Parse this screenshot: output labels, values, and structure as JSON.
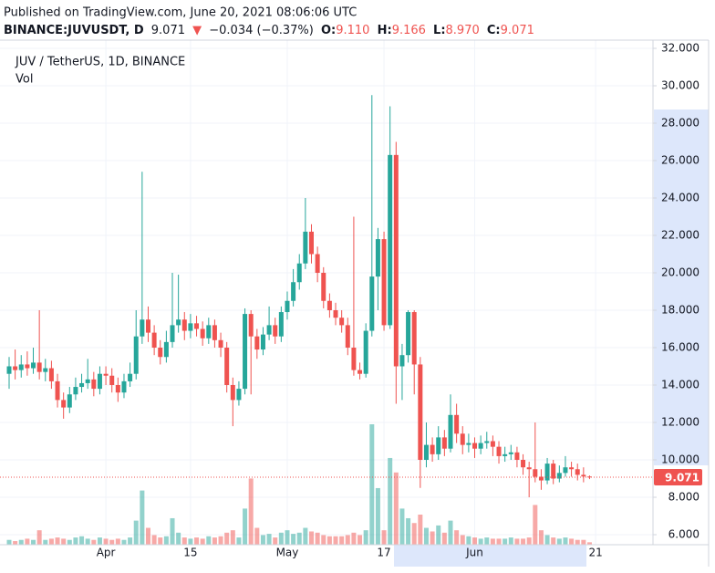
{
  "header": {
    "published": "Published on TradingView.com, June 20, 2021 08:06:06 UTC",
    "symbol": "BINANCE:JUVUSDT, D",
    "price": "9.071",
    "arrow": "▼",
    "change": "−0.034 (−0.37%)",
    "o_label": "O:",
    "open": "9.110",
    "h_label": "H:",
    "high": "9.166",
    "l_label": "L:",
    "low": "8.970",
    "c_label": "C:",
    "close": "9.071"
  },
  "chart_data": {
    "type": "candlestick",
    "title": "JUV / TetherUS, 1D, BINANCE",
    "volume_label": "Vol",
    "up_color": "#26a69a",
    "down_color": "#ef5350",
    "grid": true,
    "ylim": [
      6,
      32
    ],
    "yticks": [
      {
        "value": 6,
        "label": "6.000"
      },
      {
        "value": 8,
        "label": "8.000"
      },
      {
        "value": 10,
        "label": "10.000"
      },
      {
        "value": 12,
        "label": "12.000"
      },
      {
        "value": 14,
        "label": "14.000"
      },
      {
        "value": 16,
        "label": "16.000"
      },
      {
        "value": 18,
        "label": "18.000"
      },
      {
        "value": 20,
        "label": "20.000"
      },
      {
        "value": 22,
        "label": "22.000"
      },
      {
        "value": 24,
        "label": "24.000"
      },
      {
        "value": 26,
        "label": "26.000"
      },
      {
        "value": 28,
        "label": "28.000"
      },
      {
        "value": 30,
        "label": "30.000"
      },
      {
        "value": 32,
        "label": "32.000"
      }
    ],
    "xticks": [
      {
        "value": "2021-04-01",
        "label": "Apr"
      },
      {
        "value": "2021-04-15",
        "label": "15"
      },
      {
        "value": "2021-05-01",
        "label": "May"
      },
      {
        "value": "2021-05-17",
        "label": "17"
      },
      {
        "value": "2021-06-01",
        "label": "Jun"
      },
      {
        "value": "2021-06-21",
        "label": "21"
      }
    ],
    "x": [
      "2021-03-16",
      "2021-03-17",
      "2021-03-18",
      "2021-03-19",
      "2021-03-20",
      "2021-03-21",
      "2021-03-22",
      "2021-03-23",
      "2021-03-24",
      "2021-03-25",
      "2021-03-26",
      "2021-03-27",
      "2021-03-28",
      "2021-03-29",
      "2021-03-30",
      "2021-03-31",
      "2021-04-01",
      "2021-04-02",
      "2021-04-03",
      "2021-04-04",
      "2021-04-05",
      "2021-04-06",
      "2021-04-07",
      "2021-04-08",
      "2021-04-09",
      "2021-04-10",
      "2021-04-11",
      "2021-04-12",
      "2021-04-13",
      "2021-04-14",
      "2021-04-15",
      "2021-04-16",
      "2021-04-17",
      "2021-04-18",
      "2021-04-19",
      "2021-04-20",
      "2021-04-21",
      "2021-04-22",
      "2021-04-23",
      "2021-04-24",
      "2021-04-25",
      "2021-04-26",
      "2021-04-27",
      "2021-04-28",
      "2021-04-29",
      "2021-04-30",
      "2021-05-01",
      "2021-05-02",
      "2021-05-03",
      "2021-05-04",
      "2021-05-05",
      "2021-05-06",
      "2021-05-07",
      "2021-05-08",
      "2021-05-09",
      "2021-05-10",
      "2021-05-11",
      "2021-05-12",
      "2021-05-13",
      "2021-05-14",
      "2021-05-15",
      "2021-05-16",
      "2021-05-17",
      "2021-05-18",
      "2021-05-19",
      "2021-05-20",
      "2021-05-21",
      "2021-05-22",
      "2021-05-23",
      "2021-05-24",
      "2021-05-25",
      "2021-05-26",
      "2021-05-27",
      "2021-05-28",
      "2021-05-29",
      "2021-05-30",
      "2021-05-31",
      "2021-06-01",
      "2021-06-02",
      "2021-06-03",
      "2021-06-04",
      "2021-06-05",
      "2021-06-06",
      "2021-06-07",
      "2021-06-08",
      "2021-06-09",
      "2021-06-10",
      "2021-06-11",
      "2021-06-12",
      "2021-06-13",
      "2021-06-14",
      "2021-06-15",
      "2021-06-16",
      "2021-06-17",
      "2021-06-18",
      "2021-06-19",
      "2021-06-20"
    ],
    "open": [
      14.6,
      15.0,
      14.8,
      15.1,
      14.9,
      15.2,
      14.7,
      14.9,
      14.2,
      13.2,
      12.8,
      13.5,
      13.9,
      14.1,
      14.3,
      13.8,
      14.6,
      14.5,
      14.0,
      13.6,
      14.2,
      14.6,
      16.6,
      17.5,
      16.8,
      16.0,
      15.5,
      16.3,
      17.2,
      17.5,
      16.9,
      17.3,
      17.0,
      16.5,
      17.2,
      16.4,
      16.0,
      14.0,
      13.2,
      13.8,
      17.8,
      16.6,
      15.9,
      16.7,
      17.2,
      16.6,
      17.9,
      18.5,
      19.5,
      20.5,
      22.2,
      21.0,
      20.0,
      18.5,
      18.0,
      17.6,
      17.2,
      16.0,
      14.8,
      14.6,
      16.9,
      19.8,
      21.8,
      17.2,
      26.3,
      15.0,
      15.6,
      17.9,
      15.1,
      10.0,
      10.8,
      10.3,
      11.2,
      10.6,
      12.4,
      11.4,
      10.8,
      10.9,
      10.6,
      10.9,
      11.0,
      10.7,
      10.2,
      10.3,
      10.4,
      10.0,
      9.6,
      9.5,
      9.1,
      8.9,
      9.8,
      9.0,
      9.3,
      9.6,
      9.5,
      9.2,
      9.11
    ],
    "high": [
      15.5,
      15.9,
      15.6,
      15.8,
      16.0,
      18.0,
      15.4,
      15.3,
      14.6,
      13.6,
      13.9,
      14.4,
      14.6,
      15.4,
      14.7,
      15.0,
      15.0,
      14.9,
      14.4,
      14.6,
      15.2,
      18.0,
      25.4,
      18.2,
      17.2,
      16.4,
      16.9,
      20.0,
      19.9,
      17.9,
      17.8,
      17.7,
      17.4,
      17.6,
      17.5,
      16.8,
      16.3,
      14.4,
      14.2,
      18.1,
      18.0,
      17.0,
      17.1,
      18.2,
      17.6,
      18.2,
      19.0,
      20.2,
      21.0,
      24.0,
      22.6,
      21.4,
      20.3,
      18.9,
      18.4,
      18.0,
      17.6,
      23.0,
      15.2,
      17.3,
      29.5,
      22.4,
      22.2,
      28.9,
      27.0,
      16.2,
      18.0,
      18.0,
      15.5,
      12.0,
      11.2,
      11.8,
      11.6,
      13.5,
      13.0,
      11.8,
      11.4,
      11.2,
      11.3,
      11.5,
      11.3,
      11.0,
      10.7,
      10.8,
      10.7,
      10.3,
      9.9,
      12.0,
      9.5,
      10.1,
      10.0,
      9.7,
      10.2,
      9.9,
      9.8,
      9.6,
      9.166
    ],
    "low": [
      13.8,
      14.3,
      14.4,
      14.5,
      14.6,
      14.3,
      14.2,
      13.8,
      12.8,
      12.2,
      12.5,
      13.2,
      13.6,
      13.8,
      13.4,
      13.5,
      14.0,
      13.6,
      13.1,
      13.3,
      13.9,
      14.3,
      16.2,
      16.3,
      15.6,
      15.1,
      15.2,
      16.0,
      16.8,
      16.4,
      16.5,
      16.6,
      16.1,
      16.2,
      16.0,
      15.5,
      13.6,
      11.8,
      12.9,
      13.5,
      13.5,
      15.4,
      15.6,
      16.4,
      16.2,
      16.3,
      17.5,
      18.2,
      19.1,
      20.2,
      20.5,
      19.5,
      18.1,
      17.6,
      17.2,
      16.8,
      15.6,
      14.5,
      14.3,
      14.4,
      16.6,
      18.0,
      16.9,
      17.0,
      13.0,
      13.2,
      15.2,
      13.5,
      8.5,
      9.6,
      9.9,
      10.0,
      10.2,
      10.4,
      10.9,
      10.3,
      10.4,
      10.1,
      10.3,
      10.6,
      10.2,
      9.8,
      9.9,
      10.0,
      9.6,
      9.2,
      8.0,
      8.8,
      8.4,
      8.7,
      8.7,
      8.8,
      9.1,
      9.1,
      8.9,
      8.8,
      8.97
    ],
    "close": [
      15.0,
      14.8,
      15.1,
      14.9,
      15.2,
      14.7,
      14.9,
      14.2,
      13.2,
      12.8,
      13.5,
      13.9,
      14.1,
      14.3,
      13.8,
      14.6,
      14.5,
      14.0,
      13.6,
      14.2,
      14.6,
      16.6,
      17.5,
      16.8,
      16.0,
      15.5,
      16.3,
      17.2,
      17.5,
      16.9,
      17.3,
      17.0,
      16.5,
      17.2,
      16.4,
      16.0,
      14.0,
      13.2,
      13.8,
      17.8,
      16.6,
      15.9,
      16.7,
      17.2,
      16.6,
      17.9,
      18.5,
      19.5,
      20.5,
      22.2,
      21.0,
      20.0,
      18.5,
      18.0,
      17.6,
      17.2,
      16.0,
      14.8,
      14.6,
      16.9,
      19.8,
      21.8,
      17.2,
      26.3,
      15.0,
      15.6,
      17.9,
      15.1,
      10.0,
      10.8,
      10.3,
      11.2,
      10.6,
      12.4,
      11.4,
      10.8,
      10.9,
      10.6,
      10.9,
      11.0,
      10.7,
      10.2,
      10.3,
      10.4,
      10.0,
      9.6,
      9.5,
      9.1,
      8.9,
      9.8,
      9.0,
      9.3,
      9.6,
      9.5,
      9.2,
      9.11,
      9.071
    ],
    "volume": [
      4,
      3,
      4,
      5,
      4,
      12,
      4,
      5,
      6,
      5,
      4,
      6,
      7,
      5,
      4,
      6,
      5,
      4,
      5,
      4,
      6,
      20,
      45,
      14,
      8,
      6,
      7,
      22,
      10,
      6,
      5,
      6,
      5,
      7,
      6,
      7,
      10,
      12,
      6,
      30,
      55,
      14,
      8,
      9,
      6,
      10,
      12,
      9,
      10,
      14,
      11,
      10,
      8,
      7,
      7,
      7,
      8,
      10,
      8,
      12,
      100,
      47,
      12,
      72,
      60,
      30,
      22,
      18,
      25,
      14,
      11,
      16,
      10,
      20,
      12,
      8,
      7,
      6,
      5,
      6,
      5,
      5,
      5,
      6,
      5,
      5,
      6,
      33,
      12,
      8,
      6,
      5,
      6,
      5,
      4,
      4,
      2
    ]
  }
}
